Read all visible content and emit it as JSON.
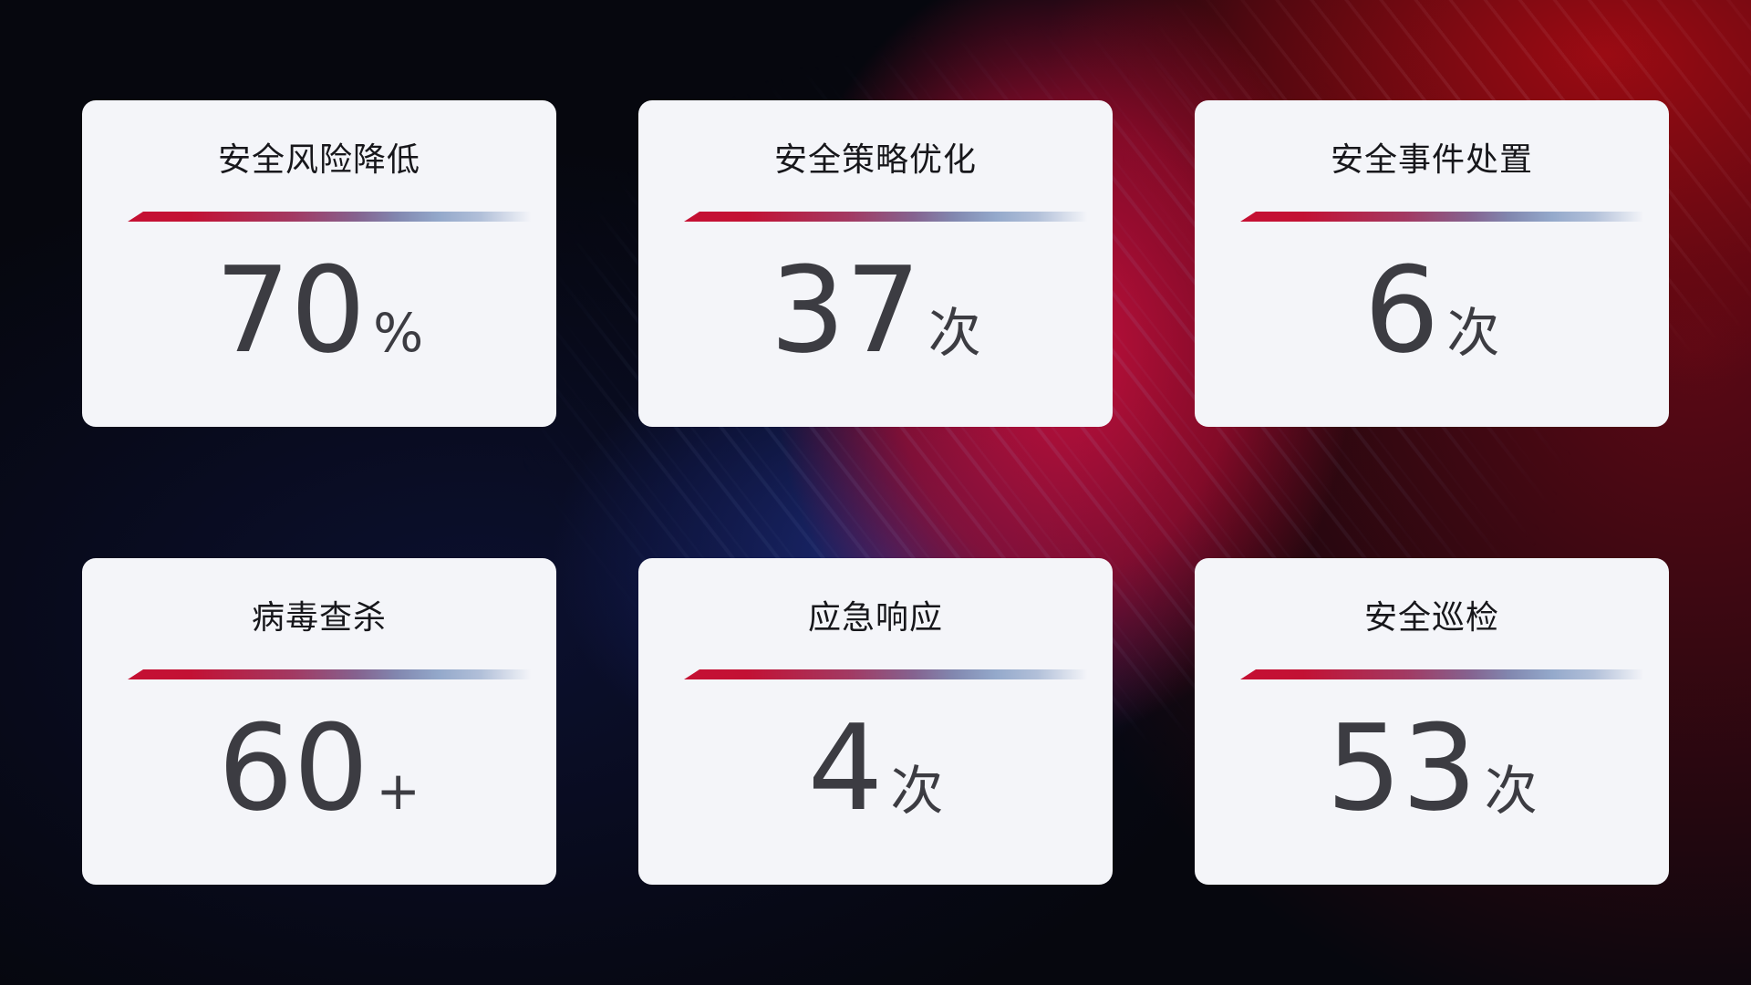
{
  "cards": [
    {
      "title": "安全风险降低",
      "value": "70",
      "unit": "%"
    },
    {
      "title": "安全策略优化",
      "value": "37",
      "unit": "次"
    },
    {
      "title": "安全事件处置",
      "value": "6",
      "unit": "次"
    },
    {
      "title": "病毒查杀",
      "value": "60",
      "unit": "+"
    },
    {
      "title": "应急响应",
      "value": "4",
      "unit": "次"
    },
    {
      "title": "安全巡检",
      "value": "53",
      "unit": "次"
    }
  ],
  "colors": {
    "card-bg": "#f4f5f9",
    "title-color": "#17171b",
    "value-color": "#3c3c42",
    "bar-red": "#c51033",
    "bar-blue": "#b2c0d9",
    "bg-crimson": "#c1103e",
    "bg-dark-red": "#8e0a10",
    "bg-blue": "#1c2a76",
    "bg-base": "#06070e"
  }
}
